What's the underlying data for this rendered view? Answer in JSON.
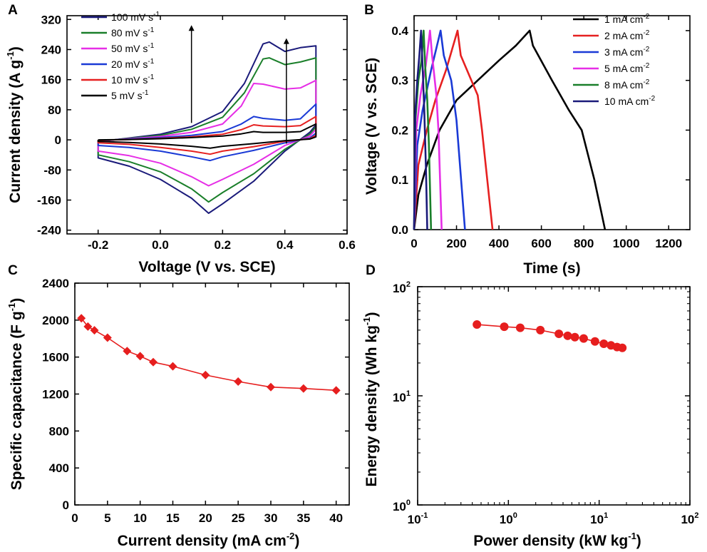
{
  "chart_data": [
    {
      "panel": "A",
      "type": "line",
      "xlabel": "Voltage (V vs. SCE)",
      "ylabel": "Current density (A g",
      "ylabel_sup": "-1",
      "ylabel_end": ")",
      "xlim": [
        -0.3,
        0.6
      ],
      "ylim": [
        -250,
        330
      ],
      "xticks": [
        -0.2,
        0.0,
        0.2,
        0.4,
        0.6
      ],
      "xtick_labels": [
        "-0.2",
        "0.0",
        "0.2",
        "0.4",
        "0.6"
      ],
      "yticks": [
        -240,
        -160,
        -80,
        0,
        80,
        160,
        240,
        320
      ],
      "ytick_labels": [
        "-240",
        "-160",
        "-80",
        "0",
        "80",
        "160",
        "240",
        "320"
      ],
      "series": [
        {
          "name": "100 mV s",
          "sup": "-1",
          "color": "#1a1a7a",
          "upper": [
            [
              -0.2,
              -5
            ],
            [
              -0.1,
              5
            ],
            [
              0.0,
              15
            ],
            [
              0.1,
              35
            ],
            [
              0.2,
              75
            ],
            [
              0.27,
              150
            ],
            [
              0.33,
              255
            ],
            [
              0.35,
              260
            ],
            [
              0.4,
              235
            ],
            [
              0.45,
              245
            ],
            [
              0.5,
              250
            ]
          ],
          "lower": [
            [
              0.5,
              40
            ],
            [
              0.48,
              20
            ],
            [
              0.4,
              -30
            ],
            [
              0.3,
              -110
            ],
            [
              0.2,
              -170
            ],
            [
              0.155,
              -195
            ],
            [
              0.1,
              -155
            ],
            [
              0.0,
              -105
            ],
            [
              -0.1,
              -70
            ],
            [
              -0.2,
              -48
            ]
          ]
        },
        {
          "name": "80 mV s",
          "sup": "-1",
          "color": "#1a7f2a",
          "upper": [
            [
              -0.2,
              -4
            ],
            [
              -0.1,
              4
            ],
            [
              0.0,
              12
            ],
            [
              0.1,
              28
            ],
            [
              0.2,
              60
            ],
            [
              0.27,
              125
            ],
            [
              0.33,
              215
            ],
            [
              0.35,
              218
            ],
            [
              0.4,
              200
            ],
            [
              0.45,
              207
            ],
            [
              0.5,
              218
            ]
          ],
          "lower": [
            [
              0.5,
              35
            ],
            [
              0.48,
              15
            ],
            [
              0.4,
              -25
            ],
            [
              0.3,
              -90
            ],
            [
              0.2,
              -140
            ],
            [
              0.155,
              -165
            ],
            [
              0.1,
              -130
            ],
            [
              0.0,
              -85
            ],
            [
              -0.1,
              -58
            ],
            [
              -0.2,
              -40
            ]
          ]
        },
        {
          "name": "50 mV s",
          "sup": "-1",
          "color": "#e62ee6",
          "upper": [
            [
              -0.2,
              -3
            ],
            [
              -0.1,
              3
            ],
            [
              0.0,
              9
            ],
            [
              0.1,
              20
            ],
            [
              0.2,
              42
            ],
            [
              0.26,
              90
            ],
            [
              0.3,
              150
            ],
            [
              0.33,
              148
            ],
            [
              0.4,
              135
            ],
            [
              0.45,
              138
            ],
            [
              0.5,
              158
            ]
          ],
          "lower": [
            [
              0.5,
              28
            ],
            [
              0.48,
              10
            ],
            [
              0.4,
              -15
            ],
            [
              0.3,
              -65
            ],
            [
              0.2,
              -105
            ],
            [
              0.155,
              -122
            ],
            [
              0.1,
              -98
            ],
            [
              0.0,
              -62
            ],
            [
              -0.1,
              -42
            ],
            [
              -0.2,
              -30
            ]
          ]
        },
        {
          "name": "20 mV s",
          "sup": "-1",
          "color": "#1a3ad6",
          "upper": [
            [
              -0.2,
              -2
            ],
            [
              -0.1,
              2
            ],
            [
              0.0,
              6
            ],
            [
              0.1,
              12
            ],
            [
              0.2,
              22
            ],
            [
              0.26,
              42
            ],
            [
              0.3,
              62
            ],
            [
              0.33,
              57
            ],
            [
              0.4,
              52
            ],
            [
              0.45,
              56
            ],
            [
              0.5,
              95
            ]
          ],
          "lower": [
            [
              0.5,
              18
            ],
            [
              0.48,
              5
            ],
            [
              0.4,
              -8
            ],
            [
              0.3,
              -28
            ],
            [
              0.2,
              -45
            ],
            [
              0.16,
              -55
            ],
            [
              0.1,
              -45
            ],
            [
              0.0,
              -30
            ],
            [
              -0.1,
              -20
            ],
            [
              -0.2,
              -15
            ]
          ]
        },
        {
          "name": "10 mV s",
          "sup": "-1",
          "color": "#e62020",
          "upper": [
            [
              -0.2,
              -1
            ],
            [
              -0.1,
              1
            ],
            [
              0.0,
              4
            ],
            [
              0.1,
              8
            ],
            [
              0.2,
              15
            ],
            [
              0.26,
              27
            ],
            [
              0.3,
              40
            ],
            [
              0.33,
              37
            ],
            [
              0.4,
              35
            ],
            [
              0.45,
              38
            ],
            [
              0.5,
              62
            ]
          ],
          "lower": [
            [
              0.5,
              12
            ],
            [
              0.48,
              3
            ],
            [
              0.4,
              -4
            ],
            [
              0.3,
              -18
            ],
            [
              0.2,
              -30
            ],
            [
              0.16,
              -38
            ],
            [
              0.1,
              -30
            ],
            [
              0.0,
              -20
            ],
            [
              -0.1,
              -12
            ],
            [
              -0.2,
              -8
            ]
          ]
        },
        {
          "name": "5 mV s",
          "sup": "-1",
          "color": "#000000",
          "upper": [
            [
              -0.2,
              0
            ],
            [
              -0.1,
              1
            ],
            [
              0.0,
              3
            ],
            [
              0.1,
              6
            ],
            [
              0.2,
              10
            ],
            [
              0.26,
              16
            ],
            [
              0.3,
              22
            ],
            [
              0.33,
              20
            ],
            [
              0.4,
              20
            ],
            [
              0.45,
              22
            ],
            [
              0.5,
              42
            ]
          ],
          "lower": [
            [
              0.5,
              8
            ],
            [
              0.48,
              2
            ],
            [
              0.4,
              -2
            ],
            [
              0.3,
              -10
            ],
            [
              0.2,
              -17
            ],
            [
              0.16,
              -22
            ],
            [
              0.1,
              -17
            ],
            [
              0.0,
              -11
            ],
            [
              -0.1,
              -7
            ],
            [
              -0.2,
              -4
            ]
          ]
        }
      ],
      "arrows": [
        {
          "x": 0.1,
          "y_from": 45,
          "y_to": 305
        },
        {
          "x": 0.405,
          "y_from": -10,
          "y_to": 270
        }
      ]
    },
    {
      "panel": "B",
      "type": "line",
      "xlabel": "Time (s)",
      "ylabel": "Voltage (V vs. SCE)",
      "xlim": [
        0,
        1300
      ],
      "ylim": [
        0,
        0.43
      ],
      "xticks": [
        0,
        200,
        400,
        600,
        800,
        1000,
        1200
      ],
      "xtick_labels": [
        "0",
        "200",
        "400",
        "600",
        "800",
        "1000",
        "1200"
      ],
      "yticks": [
        0.0,
        0.1,
        0.2,
        0.3,
        0.4
      ],
      "ytick_labels": [
        "0.0",
        "0.1",
        "0.2",
        "0.3",
        "0.4"
      ],
      "series": [
        {
          "name": "1 mA cm",
          "sup": "-2",
          "color": "#000000",
          "points": [
            [
              0,
              0
            ],
            [
              20,
              0.07
            ],
            [
              60,
              0.13
            ],
            [
              120,
              0.2
            ],
            [
              200,
              0.26
            ],
            [
              300,
              0.3
            ],
            [
              400,
              0.34
            ],
            [
              480,
              0.37
            ],
            [
              545,
              0.4
            ],
            [
              560,
              0.37
            ],
            [
              650,
              0.3
            ],
            [
              730,
              0.24
            ],
            [
              790,
              0.2
            ],
            [
              820,
              0.15
            ],
            [
              850,
              0.1
            ],
            [
              880,
              0.04
            ],
            [
              900,
              0
            ]
          ]
        },
        {
          "name": "2 mA cm",
          "sup": "-2",
          "color": "#e62020",
          "points": [
            [
              0,
              0
            ],
            [
              20,
              0.13
            ],
            [
              60,
              0.2
            ],
            [
              100,
              0.26
            ],
            [
              150,
              0.32
            ],
            [
              205,
              0.4
            ],
            [
              220,
              0.35
            ],
            [
              270,
              0.3
            ],
            [
              300,
              0.27
            ],
            [
              320,
              0.2
            ],
            [
              345,
              0.1
            ],
            [
              370,
              0
            ]
          ]
        },
        {
          "name": "3 mA cm",
          "sup": "-2",
          "color": "#1a3ad6",
          "points": [
            [
              0,
              0
            ],
            [
              15,
              0.17
            ],
            [
              40,
              0.24
            ],
            [
              80,
              0.32
            ],
            [
              125,
              0.4
            ],
            [
              140,
              0.35
            ],
            [
              175,
              0.3
            ],
            [
              200,
              0.22
            ],
            [
              240,
              0
            ]
          ]
        },
        {
          "name": "5 mA cm",
          "sup": "-2",
          "color": "#e62ee6",
          "points": [
            [
              0,
              0
            ],
            [
              10,
              0.2
            ],
            [
              30,
              0.27
            ],
            [
              55,
              0.33
            ],
            [
              75,
              0.4
            ],
            [
              85,
              0.35
            ],
            [
              105,
              0.27
            ],
            [
              115,
              0.2
            ],
            [
              130,
              0
            ]
          ]
        },
        {
          "name": "8 mA cm",
          "sup": "-2",
          "color": "#1a7f2a",
          "points": [
            [
              0,
              0
            ],
            [
              6,
              0.22
            ],
            [
              20,
              0.3
            ],
            [
              35,
              0.34
            ],
            [
              45,
              0.4
            ],
            [
              52,
              0.33
            ],
            [
              62,
              0.26
            ],
            [
              70,
              0.17
            ],
            [
              80,
              0
            ]
          ]
        },
        {
          "name": "10 mA cm",
          "sup": "-2",
          "color": "#1a1a7a",
          "points": [
            [
              0,
              0
            ],
            [
              5,
              0.23
            ],
            [
              15,
              0.3
            ],
            [
              25,
              0.35
            ],
            [
              33,
              0.4
            ],
            [
              40,
              0.33
            ],
            [
              48,
              0.24
            ],
            [
              56,
              0.12
            ],
            [
              62,
              0
            ]
          ]
        }
      ]
    },
    {
      "panel": "C",
      "type": "line",
      "xlabel": "Current density (mA cm",
      "xlabel_sup": "-2",
      "xlabel_end": ")",
      "ylabel": "Specific capacitance (F g",
      "ylabel_sup": "-1",
      "ylabel_end": ")",
      "xlim": [
        0,
        42
      ],
      "ylim": [
        0,
        2400
      ],
      "xticks": [
        0,
        5,
        10,
        15,
        20,
        25,
        30,
        35,
        40
      ],
      "xtick_labels": [
        "0",
        "5",
        "10",
        "15",
        "20",
        "25",
        "30",
        "35",
        "40"
      ],
      "yticks": [
        0,
        400,
        800,
        1200,
        1600,
        2000,
        2400
      ],
      "ytick_labels": [
        "0",
        "400",
        "800",
        "1200",
        "1600",
        "2000",
        "2400"
      ],
      "marker": "diamond",
      "color": "#e61e1e",
      "x": [
        1,
        2,
        3,
        5,
        8,
        10,
        12,
        15,
        20,
        25,
        30,
        35,
        40
      ],
      "y": [
        2020,
        1930,
        1890,
        1810,
        1665,
        1610,
        1545,
        1500,
        1405,
        1335,
        1275,
        1260,
        1240
      ]
    },
    {
      "panel": "D",
      "type": "line",
      "scale": "log-log",
      "xlabel": "Power density (kW kg",
      "xlabel_sup": "-1",
      "xlabel_end": ")",
      "ylabel": "Energy density (Wh kg",
      "ylabel_sup": "-1",
      "ylabel_end": ")",
      "xlim": [
        0.1,
        100
      ],
      "ylim": [
        1,
        100
      ],
      "xticks": [
        0.1,
        1,
        10,
        100
      ],
      "xtick_labels": [
        [
          "10",
          "-1"
        ],
        [
          "10",
          "0"
        ],
        [
          "10",
          "1"
        ],
        [
          "10",
          "2"
        ]
      ],
      "yticks": [
        1,
        10,
        100
      ],
      "ytick_labels": [
        [
          "10",
          "0"
        ],
        [
          "10",
          "1"
        ],
        [
          "10",
          "2"
        ]
      ],
      "marker": "circle",
      "color": "#e61e1e",
      "x": [
        0.45,
        0.9,
        1.35,
        2.25,
        3.6,
        4.5,
        5.4,
        6.75,
        9.0,
        11.25,
        13.5,
        15.75,
        18.0
      ],
      "y": [
        45.0,
        43.0,
        42.0,
        40.0,
        37.0,
        35.5,
        34.5,
        33.5,
        31.5,
        30.0,
        29.0,
        28.0,
        27.5
      ]
    }
  ]
}
